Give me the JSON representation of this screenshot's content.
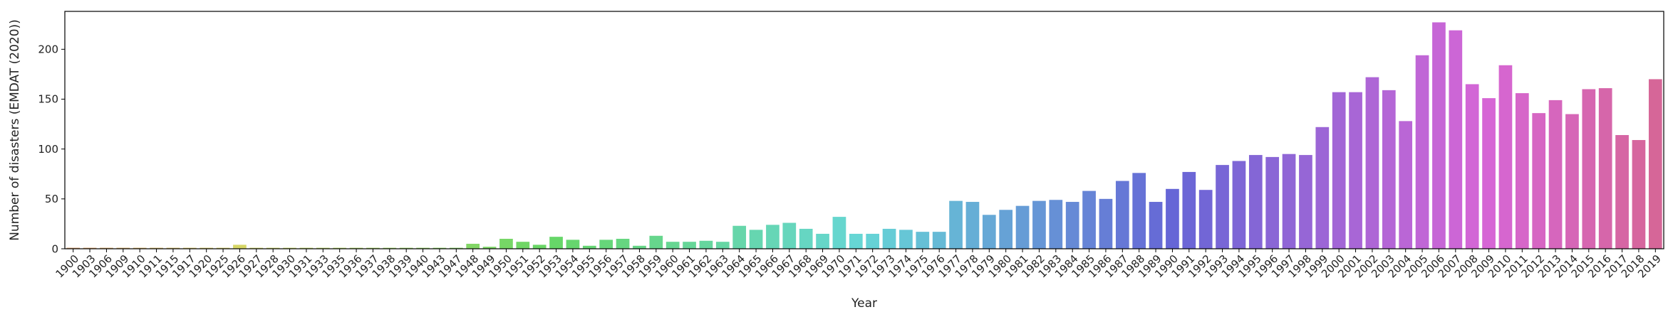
{
  "chart_data": {
    "type": "bar",
    "title": "",
    "xlabel": "Year",
    "ylabel": "Number of disasters (EMDAT (2020))",
    "ylim": [
      0,
      238
    ],
    "yticks": [
      0,
      50,
      100,
      150,
      200
    ],
    "grid": false,
    "categories": [
      "1900",
      "1903",
      "1906",
      "1909",
      "1910",
      "1911",
      "1915",
      "1917",
      "1920",
      "1925",
      "1926",
      "1927",
      "1928",
      "1930",
      "1931",
      "1933",
      "1935",
      "1936",
      "1937",
      "1938",
      "1939",
      "1940",
      "1943",
      "1947",
      "1948",
      "1949",
      "1950",
      "1951",
      "1952",
      "1953",
      "1954",
      "1955",
      "1956",
      "1957",
      "1958",
      "1959",
      "1960",
      "1961",
      "1962",
      "1963",
      "1964",
      "1965",
      "1966",
      "1967",
      "1968",
      "1969",
      "1970",
      "1971",
      "1972",
      "1973",
      "1974",
      "1975",
      "1976",
      "1977",
      "1978",
      "1979",
      "1980",
      "1981",
      "1982",
      "1983",
      "1984",
      "1985",
      "1986",
      "1987",
      "1988",
      "1989",
      "1990",
      "1991",
      "1992",
      "1993",
      "1994",
      "1995",
      "1996",
      "1997",
      "1998",
      "1999",
      "2000",
      "2001",
      "2002",
      "2003",
      "2004",
      "2005",
      "2006",
      "2007",
      "2008",
      "2009",
      "2010",
      "2011",
      "2012",
      "2013",
      "2014",
      "2015",
      "2016",
      "2017",
      "2018",
      "2019"
    ],
    "values": [
      1,
      1,
      1,
      1,
      1,
      1,
      1,
      1,
      1,
      1,
      4,
      1,
      1,
      1,
      1,
      1,
      1,
      1,
      1,
      1,
      1,
      1,
      1,
      1,
      5,
      2,
      10,
      7,
      4,
      12,
      9,
      3,
      9,
      10,
      3,
      13,
      7,
      7,
      8,
      7,
      23,
      19,
      24,
      26,
      20,
      15,
      32,
      15,
      15,
      20,
      19,
      17,
      17,
      48,
      47,
      34,
      39,
      43,
      48,
      49,
      47,
      58,
      50,
      68,
      76,
      47,
      60,
      77,
      59,
      84,
      88,
      94,
      92,
      95,
      94,
      122,
      157,
      157,
      172,
      159,
      128,
      194,
      227,
      219,
      165,
      151,
      184,
      156,
      136,
      149,
      135,
      160,
      161,
      114,
      109,
      170
    ]
  }
}
